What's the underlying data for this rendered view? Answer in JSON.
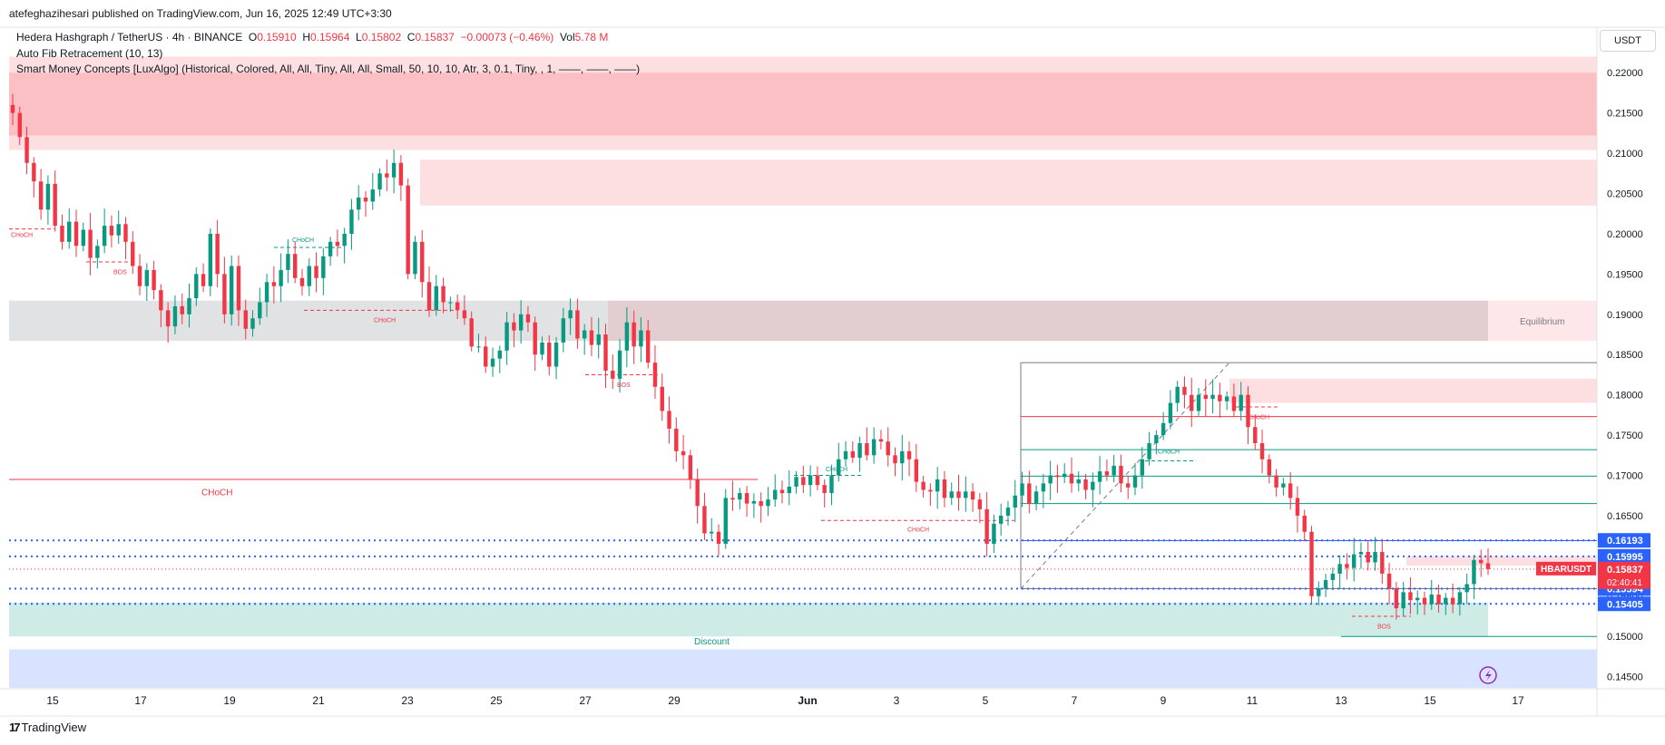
{
  "header": {
    "published": "atefeghazihesari published on TradingView.com, Jun 16, 2025 12:49 UTC+3:30",
    "symbol_title": "Hedera Hashgraph / TetherUS · 4h · BINANCE",
    "ohlc": {
      "o_label": "O",
      "o": "0.15910",
      "h_label": "H",
      "h": "0.15964",
      "l_label": "L",
      "l": "0.15802",
      "c_label": "C",
      "c": "0.15837",
      "change": "−0.00073 (−0.46%)",
      "vol_label": "Vol",
      "vol": "5.78 M"
    },
    "indicator1": "Auto Fib Retracement (10, 13)",
    "indicator2": "Smart Money Concepts [LuxAlgo] (Historical, Colored, All, All, Tiny, All, All, Small, 50, 10, 10, Atr, 3, 0.1, Tiny, , 1, ——, ——, ——)",
    "currency": "USDT"
  },
  "footer": {
    "brand": "TradingView",
    "logo": "TV-logo-icon"
  },
  "colors": {
    "up": "#089981",
    "down": "#f23645",
    "blue": "#2962ff",
    "equilibrium": "#787b86"
  },
  "chart_data": {
    "type": "candlestick",
    "symbol": "HBARUSDT",
    "timeframe": "4h",
    "ylim": [
      0.1435,
      0.2225
    ],
    "y_ticks": [
      "0.22000",
      "0.21500",
      "0.21000",
      "0.20500",
      "0.20000",
      "0.19500",
      "0.19000",
      "0.18500",
      "0.18000",
      "0.17500",
      "0.17000",
      "0.16500",
      "0.16000",
      "0.15500",
      "0.15000",
      "0.14500"
    ],
    "x_ticks": [
      "15",
      "17",
      "19",
      "21",
      "23",
      "25",
      "27",
      "29",
      "Jun",
      "3",
      "5",
      "7",
      "9",
      "11",
      "13",
      "15",
      "17"
    ],
    "price_labels": [
      {
        "text": "0.16193",
        "value": 0.16193,
        "color": "#2962ff"
      },
      {
        "text": "0.15995",
        "value": 0.15995,
        "color": "#2962ff"
      },
      {
        "text": "0.15594",
        "value": 0.15594,
        "color": "#2962ff"
      },
      {
        "text": "0.15405",
        "value": 0.15405,
        "color": "#2962ff"
      }
    ],
    "last_price": {
      "symbol": "HBARUSDT",
      "price": "0.15837",
      "countdown": "02:40:41",
      "value": 0.15837
    },
    "zones": [
      {
        "label": "",
        "y1": 0.222,
        "y2": 0.2104,
        "color": "#f23645"
      },
      {
        "label": "",
        "y1": 0.2092,
        "y2": 0.2035,
        "color": "#f23645"
      },
      {
        "label": "Equilibrium",
        "y1": 0.1917,
        "y2": 0.1867,
        "color": "#787b86"
      },
      {
        "label": "Discount",
        "y1": 0.1484,
        "y2": 0.1436,
        "color": "#2962ff"
      }
    ],
    "structure_labels": [
      {
        "text": "CHoCH",
        "color": "#f23645"
      },
      {
        "text": "BOS",
        "color": "#f23645"
      },
      {
        "text": "CHoCH",
        "color": "#089981"
      },
      {
        "text": "CHoCH",
        "color": "#f23645"
      },
      {
        "text": "BOS",
        "color": "#f23645"
      },
      {
        "text": "CHoCH",
        "color": "#f23645"
      },
      {
        "text": "CHoCH",
        "color": "#089981"
      },
      {
        "text": "CHoCH",
        "color": "#f23645"
      },
      {
        "text": "CHoCH",
        "color": "#089981"
      },
      {
        "text": "CHoCH",
        "color": "#f23645"
      },
      {
        "text": "BOS",
        "color": "#f23645"
      }
    ],
    "fib_levels": [
      0.184,
      0.1773,
      0.1732,
      0.1699,
      0.1665,
      0.1619,
      0.15594
    ],
    "closes": [
      0.215,
      0.212,
      0.2088,
      0.2065,
      0.203,
      0.2062,
      0.201,
      0.199,
      0.2015,
      0.1985,
      0.2005,
      0.197,
      0.1985,
      0.201,
      0.1998,
      0.2012,
      0.199,
      0.196,
      0.1935,
      0.1955,
      0.193,
      0.1905,
      0.1885,
      0.191,
      0.19,
      0.192,
      0.195,
      0.1935,
      0.2,
      0.195,
      0.19,
      0.196,
      0.1905,
      0.1882,
      0.1895,
      0.1915,
      0.194,
      0.1935,
      0.1955,
      0.1975,
      0.1945,
      0.1935,
      0.196,
      0.1945,
      0.1972,
      0.199,
      0.1985,
      0.2,
      0.203,
      0.2045,
      0.204,
      0.2055,
      0.2075,
      0.207,
      0.2088,
      0.206,
      0.195,
      0.199,
      0.194,
      0.1905,
      0.1935,
      0.1915,
      0.1915,
      0.1905,
      0.1895,
      0.186,
      0.186,
      0.1835,
      0.1845,
      0.1855,
      0.189,
      0.188,
      0.19,
      0.189,
      0.185,
      0.1865,
      0.1835,
      0.1865,
      0.1895,
      0.1905,
      0.187,
      0.188,
      0.1862,
      0.1875,
      0.183,
      0.182,
      0.1855,
      0.189,
      0.186,
      0.188,
      0.184,
      0.181,
      0.178,
      0.1758,
      0.173,
      0.1725,
      0.1695,
      0.1662,
      0.1628,
      0.163,
      0.1615,
      0.1672,
      0.167,
      0.1678,
      0.1665,
      0.1668,
      0.1662,
      0.167,
      0.1682,
      0.1678,
      0.1686,
      0.1698,
      0.1688,
      0.17,
      0.1688,
      0.1678,
      0.17,
      0.172,
      0.173,
      0.1722,
      0.174,
      0.1725,
      0.1745,
      0.1742,
      0.1725,
      0.1715,
      0.173,
      0.172,
      0.1692,
      0.1682,
      0.168,
      0.1695,
      0.1672,
      0.168,
      0.1672,
      0.168,
      0.167,
      0.1658,
      0.1615,
      0.164,
      0.165,
      0.166,
      0.1675,
      0.169,
      0.1665,
      0.168,
      0.169,
      0.17,
      0.1698,
      0.1702,
      0.169,
      0.1695,
      0.1682,
      0.1692,
      0.1705,
      0.17,
      0.1712,
      0.169,
      0.1685,
      0.17,
      0.172,
      0.174,
      0.175,
      0.1765,
      0.179,
      0.181,
      0.18,
      0.178,
      0.18,
      0.1795,
      0.18,
      0.1792,
      0.1798,
      0.178,
      0.18,
      0.176,
      0.174,
      0.172,
      0.17,
      0.1685,
      0.169,
      0.1672,
      0.165,
      0.163,
      0.155,
      0.156,
      0.157,
      0.1578,
      0.159,
      0.1585,
      0.1602,
      0.1605,
      0.1592,
      0.1605,
      0.1578,
      0.156,
      0.1535,
      0.1555,
      0.1545,
      0.1548,
      0.154,
      0.1552,
      0.154,
      0.1548,
      0.154,
      0.1555,
      0.1565,
      0.1595,
      0.1591,
      0.15837
    ]
  }
}
